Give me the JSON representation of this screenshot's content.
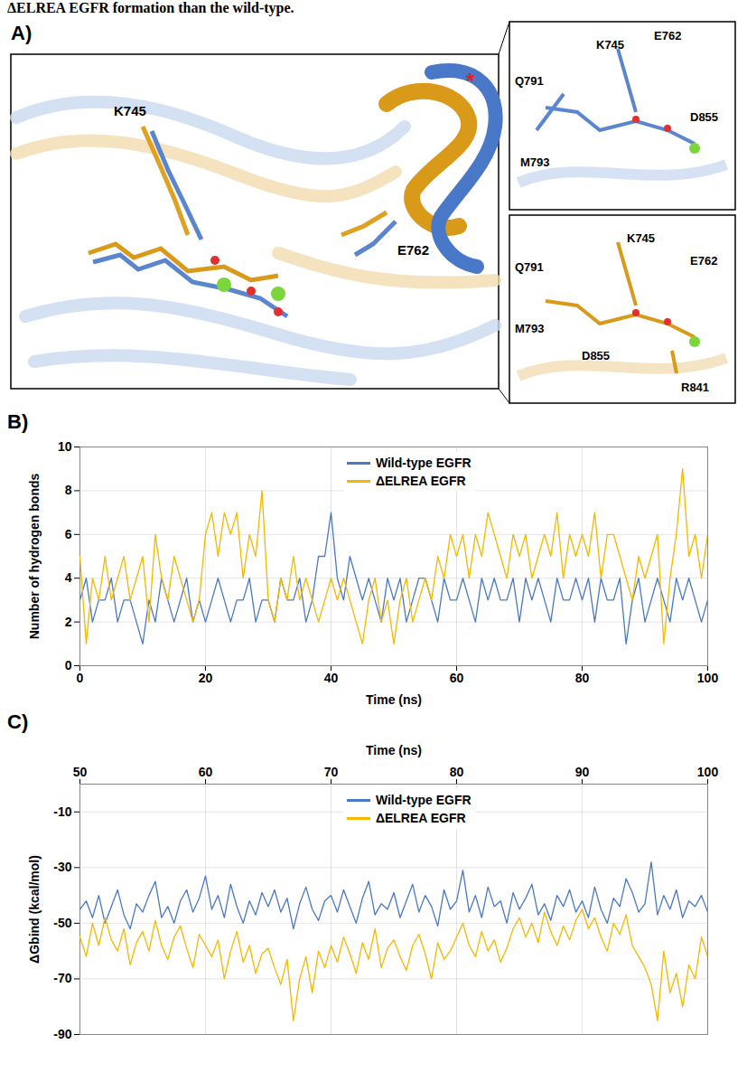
{
  "caption_fragment": "ΔELREA EGFR formation than the wild-type.",
  "panel_a": {
    "panel_label": "A)",
    "main_labels": [
      "K745",
      "E762",
      "*"
    ],
    "upper_inset_labels": [
      "E762",
      "K745",
      "Q791",
      "D855",
      "M793"
    ],
    "lower_inset_labels": [
      "K745",
      "E762",
      "Q791",
      "M793",
      "D855",
      "R841"
    ]
  },
  "chart_data": [
    {
      "panel_label": "B)",
      "type": "line",
      "x_label": "Time (ns)",
      "y_label": "Number of hydrogen bonds",
      "x": [
        0,
        1,
        2,
        3,
        4,
        5,
        6,
        7,
        8,
        9,
        10,
        11,
        12,
        13,
        14,
        15,
        16,
        17,
        18,
        19,
        20,
        21,
        22,
        23,
        24,
        25,
        26,
        27,
        28,
        29,
        30,
        31,
        32,
        33,
        34,
        35,
        36,
        37,
        38,
        39,
        40,
        41,
        42,
        43,
        44,
        45,
        46,
        47,
        48,
        49,
        50,
        51,
        52,
        53,
        54,
        55,
        56,
        57,
        58,
        59,
        60,
        61,
        62,
        63,
        64,
        65,
        66,
        67,
        68,
        69,
        70,
        71,
        72,
        73,
        74,
        75,
        76,
        77,
        78,
        79,
        80,
        81,
        82,
        83,
        84,
        85,
        86,
        87,
        88,
        89,
        90,
        91,
        92,
        93,
        94,
        95,
        96,
        97,
        98,
        99,
        100
      ],
      "series": [
        {
          "name": "Wild-type EGFR",
          "color": "#4a78c8",
          "values": [
            3,
            4,
            2,
            3,
            3,
            4,
            2,
            3,
            3,
            2,
            1,
            3,
            2,
            4,
            3,
            2,
            3,
            4,
            2,
            3,
            2,
            3,
            4,
            3,
            2,
            3,
            3,
            4,
            2,
            3,
            3,
            2,
            4,
            3,
            3,
            4,
            2,
            3,
            5,
            5,
            7,
            4,
            3,
            5,
            4,
            3,
            4,
            3,
            2,
            4,
            3,
            4,
            2,
            3,
            4,
            4,
            3,
            2,
            4,
            3,
            3,
            4,
            3,
            2,
            4,
            3,
            4,
            3,
            3,
            4,
            2,
            4,
            3,
            4,
            3,
            2,
            4,
            3,
            3,
            4,
            3,
            4,
            2,
            4,
            3,
            3,
            4,
            1,
            3,
            4,
            2,
            3,
            4,
            3,
            2,
            4,
            3,
            4,
            3,
            2,
            3
          ]
        },
        {
          "name": "ΔELREA EGFR",
          "color": "#f5b800",
          "values": [
            5,
            1,
            4,
            3,
            5,
            3,
            4,
            5,
            3,
            4,
            5,
            2,
            6,
            4,
            3,
            5,
            4,
            3,
            2,
            3,
            6,
            7,
            5,
            7,
            6,
            7,
            4,
            6,
            5,
            8,
            3,
            2,
            4,
            3,
            5,
            3,
            4,
            3,
            2,
            3,
            4,
            3,
            4,
            3,
            2,
            1,
            3,
            4,
            2,
            3,
            1,
            3,
            4,
            2,
            3,
            4,
            3,
            5,
            4,
            6,
            5,
            6,
            4,
            6,
            5,
            7,
            6,
            5,
            4,
            6,
            5,
            6,
            4,
            5,
            6,
            5,
            7,
            4,
            6,
            5,
            6,
            5,
            7,
            4,
            6,
            6,
            5,
            4,
            3,
            5,
            4,
            5,
            6,
            1,
            4,
            6,
            9,
            5,
            6,
            4,
            6
          ]
        }
      ],
      "xlim": [
        0,
        100
      ],
      "xticks": [
        0,
        20,
        40,
        60,
        80,
        100
      ],
      "ylim": [
        0,
        10
      ],
      "yticks": [
        0,
        2,
        4,
        6,
        8,
        10
      ],
      "grid": true,
      "legend": "top"
    },
    {
      "panel_label": "C)",
      "type": "line",
      "x_label": "Time (ns)",
      "y_label": "ΔGbind (kcal/mol)",
      "x": [
        50,
        50.5,
        51,
        51.5,
        52,
        52.5,
        53,
        53.5,
        54,
        54.5,
        55,
        55.5,
        56,
        56.5,
        57,
        57.5,
        58,
        58.5,
        59,
        59.5,
        60,
        60.5,
        61,
        61.5,
        62,
        62.5,
        63,
        63.5,
        64,
        64.5,
        65,
        65.5,
        66,
        66.5,
        67,
        67.5,
        68,
        68.5,
        69,
        69.5,
        70,
        70.5,
        71,
        71.5,
        72,
        72.5,
        73,
        73.5,
        74,
        74.5,
        75,
        75.5,
        76,
        76.5,
        77,
        77.5,
        78,
        78.5,
        79,
        79.5,
        80,
        80.5,
        81,
        81.5,
        82,
        82.5,
        83,
        83.5,
        84,
        84.5,
        85,
        85.5,
        86,
        86.5,
        87,
        87.5,
        88,
        88.5,
        89,
        89.5,
        90,
        90.5,
        91,
        91.5,
        92,
        92.5,
        93,
        93.5,
        94,
        94.5,
        95,
        95.5,
        96,
        96.5,
        97,
        97.5,
        98,
        98.5,
        99,
        99.5,
        100
      ],
      "series": [
        {
          "name": "Wild-type EGFR",
          "color": "#4a78c8",
          "values": [
            -45,
            -42,
            -48,
            -40,
            -50,
            -44,
            -38,
            -47,
            -52,
            -43,
            -46,
            -40,
            -35,
            -48,
            -44,
            -50,
            -42,
            -38,
            -46,
            -41,
            -33,
            -45,
            -40,
            -48,
            -36,
            -44,
            -50,
            -42,
            -47,
            -39,
            -44,
            -38,
            -46,
            -41,
            -52,
            -43,
            -37,
            -45,
            -49,
            -42,
            -40,
            -46,
            -38,
            -44,
            -50,
            -41,
            -35,
            -47,
            -43,
            -45,
            -39,
            -48,
            -42,
            -36,
            -46,
            -40,
            -44,
            -51,
            -38,
            -45,
            -42,
            -31,
            -46,
            -40,
            -48,
            -37,
            -44,
            -42,
            -50,
            -39,
            -45,
            -41,
            -36,
            -47,
            -43,
            -49,
            -40,
            -44,
            -38,
            -46,
            -42,
            -48,
            -37,
            -45,
            -50,
            -41,
            -44,
            -34,
            -39,
            -46,
            -43,
            -28,
            -47,
            -40,
            -45,
            -38,
            -48,
            -42,
            -44,
            -40,
            -46
          ]
        },
        {
          "name": "ΔELREA EGFR",
          "color": "#f5b800",
          "values": [
            -55,
            -62,
            -50,
            -58,
            -48,
            -56,
            -60,
            -52,
            -65,
            -57,
            -53,
            -60,
            -49,
            -58,
            -63,
            -55,
            -51,
            -59,
            -66,
            -54,
            -58,
            -62,
            -56,
            -70,
            -60,
            -53,
            -64,
            -58,
            -68,
            -61,
            -59,
            -66,
            -72,
            -63,
            -85,
            -70,
            -62,
            -75,
            -60,
            -66,
            -58,
            -64,
            -55,
            -61,
            -68,
            -57,
            -63,
            -52,
            -66,
            -59,
            -56,
            -62,
            -67,
            -58,
            -54,
            -61,
            -70,
            -57,
            -63,
            -60,
            -55,
            -50,
            -58,
            -62,
            -53,
            -60,
            -56,
            -64,
            -59,
            -52,
            -48,
            -55,
            -50,
            -57,
            -46,
            -53,
            -58,
            -51,
            -56,
            -49,
            -45,
            -52,
            -48,
            -55,
            -60,
            -50,
            -54,
            -47,
            -58,
            -62,
            -66,
            -72,
            -85,
            -60,
            -75,
            -68,
            -80,
            -65,
            -70,
            -55,
            -62
          ]
        }
      ],
      "xlim": [
        50,
        100
      ],
      "xticks": [
        50,
        60,
        70,
        80,
        90,
        100
      ],
      "ylim": [
        -90,
        0
      ],
      "yticks": [
        -10,
        -30,
        -50,
        -70,
        -90
      ],
      "grid": true,
      "legend": "top"
    }
  ]
}
